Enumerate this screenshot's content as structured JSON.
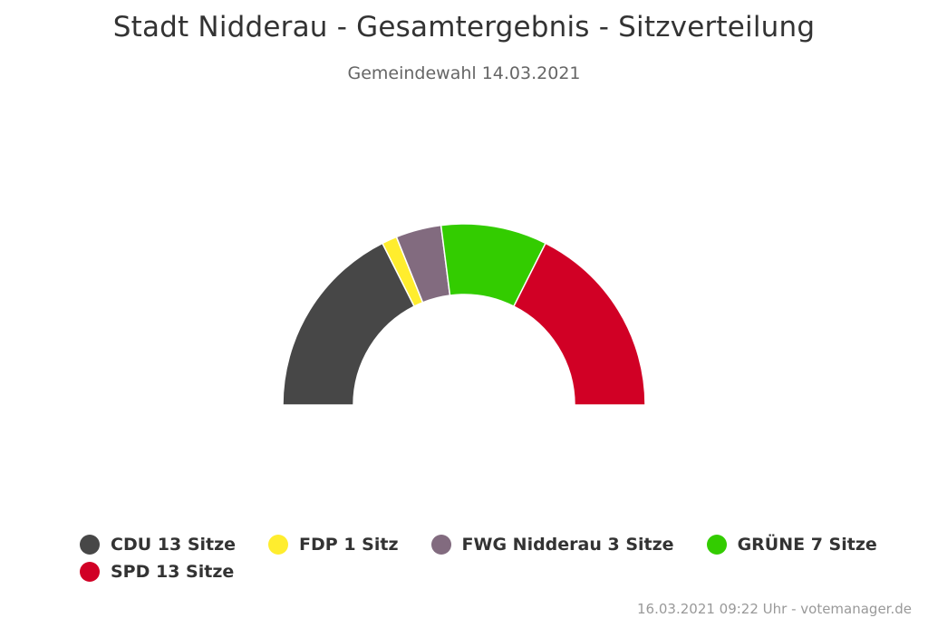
{
  "title": "Stadt Nidderau - Gesamtergebnis - Sitzverteilung",
  "subtitle": "Gemeindewahl 14.03.2021",
  "credits": "16.03.2021 09:22 Uhr - votemanager.de",
  "legend": [
    {
      "label": "CDU 13 Sitze",
      "color": "#474747"
    },
    {
      "label": "FDP 1 Sitz",
      "color": "#ffed2e"
    },
    {
      "label": "FWG Nidderau 3 Sitze",
      "color": "#826b7f"
    },
    {
      "label": "GRÜNE 7 Sitze",
      "color": "#33cc00"
    },
    {
      "label": "SPD 13 Sitze",
      "color": "#d10025"
    }
  ],
  "chart_data": {
    "type": "pie",
    "variant": "semicircle-donut",
    "title": "Stadt Nidderau - Gesamtergebnis - Sitzverteilung",
    "subtitle": "Gemeindewahl 14.03.2021",
    "series": [
      {
        "name": "CDU",
        "value": 13,
        "color": "#474747"
      },
      {
        "name": "FDP",
        "value": 1,
        "color": "#ffed2e"
      },
      {
        "name": "FWG Nidderau",
        "value": 3,
        "color": "#826b7f"
      },
      {
        "name": "GRÜNE",
        "value": 7,
        "color": "#33cc00"
      },
      {
        "name": "SPD",
        "value": 13,
        "color": "#d10025"
      }
    ],
    "legend_position": "bottom"
  }
}
